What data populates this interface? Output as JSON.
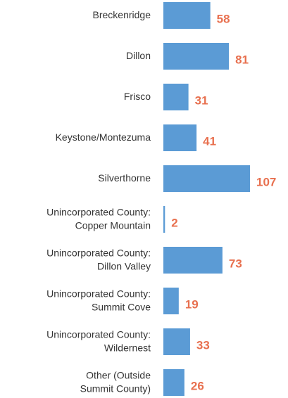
{
  "chart_data": {
    "type": "bar",
    "orientation": "horizontal",
    "categories": [
      "Breckenridge",
      "Dillon",
      "Frisco",
      "Keystone/Montezuma",
      "Silverthorne",
      "Unincorporated County:\nCopper Mountain",
      "Unincorporated County:\nDillon Valley",
      "Unincorporated County:\nSummit Cove",
      "Unincorporated County:\nWildernest",
      "Other (Outside\nSummit County)"
    ],
    "values": [
      58,
      81,
      31,
      41,
      107,
      2,
      73,
      19,
      33,
      26
    ],
    "color": "#5b9bd5"
  }
}
